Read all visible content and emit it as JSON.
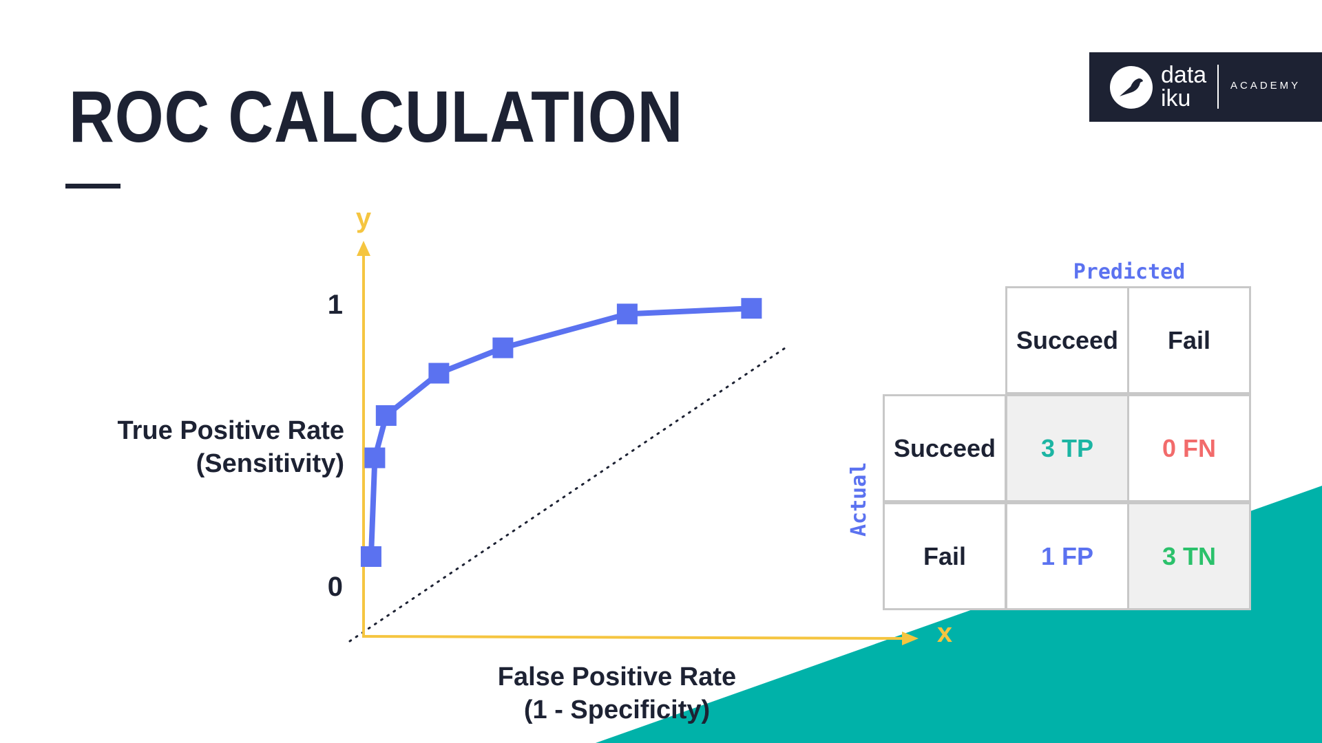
{
  "slide": {
    "title": "ROC CALCULATION",
    "logo": {
      "word_line1": "data",
      "word_line2": "iku",
      "suffix": "ACADEMY"
    }
  },
  "colors": {
    "dark": "#1d2233",
    "axis": "#f5c540",
    "curve": "#5b72f0",
    "teal": "#00b2a9",
    "tp": "#1cb5a3",
    "fn": "#f26b6b",
    "fp": "#5b72f0",
    "tn": "#2bc16b"
  },
  "chart_data": {
    "type": "line",
    "x_axis_letter": "x",
    "y_axis_letter": "y",
    "xlabel_line1": "False Positive Rate",
    "xlabel_line2": "(1 - Specificity)",
    "ylabel_line1": "True Positive Rate",
    "ylabel_line2": "(Sensitivity)",
    "ytick_top": "1",
    "ytick_bottom": "0",
    "ylim": [
      0,
      1
    ],
    "grid": false,
    "series": [
      {
        "x": [
          0.02,
          0.03,
          0.06,
          0.2,
          0.37,
          0.7,
          1.03
        ],
        "y": [
          0.1,
          0.45,
          0.6,
          0.75,
          0.84,
          0.96,
          0.98
        ]
      }
    ],
    "reference_line": "diagonal-dotted"
  },
  "matrix": {
    "predicted_label": "Predicted",
    "actual_label": "Actual",
    "col_headers": [
      "Succeed",
      "Fail"
    ],
    "row_headers": [
      "Succeed",
      "Fail"
    ],
    "cells": [
      [
        "3 TP",
        "0 FN"
      ],
      [
        "1 FP",
        "3 TN"
      ]
    ]
  }
}
